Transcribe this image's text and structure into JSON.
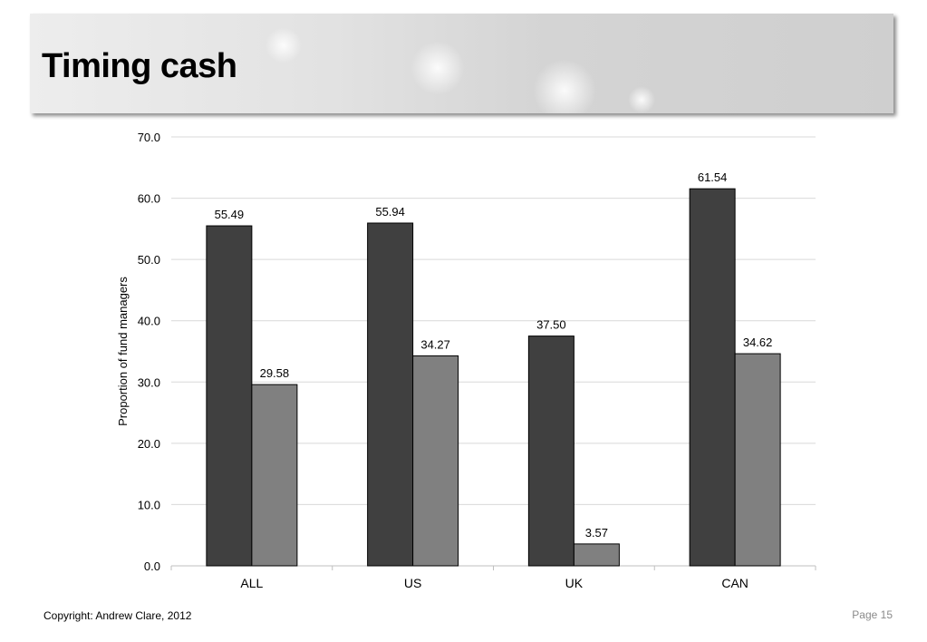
{
  "slide": {
    "title": "Timing cash",
    "copyright": "Copyright: Andrew Clare, 2012",
    "page_label": "Page 15"
  },
  "chart_data": {
    "type": "bar",
    "categories": [
      "ALL",
      "US",
      "UK",
      "CAN"
    ],
    "series": [
      {
        "values": [
          55.49,
          55.94,
          37.5,
          61.54
        ],
        "labels": [
          "55.49",
          "55.94",
          "37.50",
          "61.54"
        ],
        "color": "#404040"
      },
      {
        "values": [
          29.58,
          34.27,
          3.57,
          34.62
        ],
        "labels": [
          "29.58",
          "34.27",
          "3.57",
          "34.62"
        ],
        "color": "#808080"
      }
    ],
    "title": "",
    "xlabel": "",
    "ylabel": "Proportion of fund managers",
    "ylim": [
      0,
      70
    ],
    "yticks": [
      "0.0",
      "10.0",
      "20.0",
      "30.0",
      "40.0",
      "50.0",
      "60.0",
      "70.0"
    ],
    "grid": true,
    "legend": "none"
  }
}
